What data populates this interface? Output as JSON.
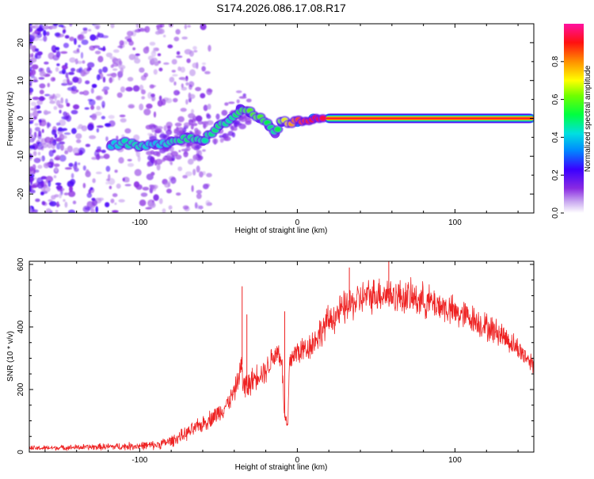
{
  "title": "S174.2026.086.17.08.R17",
  "colors": {
    "snr_line": "#ee2222",
    "axis": "#000000",
    "background": "#ffffff"
  },
  "chart_data": [
    {
      "type": "heatmap",
      "name": "spectrogram",
      "xlabel": "Height of straight line (km)",
      "ylabel": "Frequency (Hz)",
      "xlim": [
        -170,
        150
      ],
      "ylim": [
        -25,
        25
      ],
      "xticks": [
        -100,
        0,
        100
      ],
      "xtick_labels": [
        "-100",
        "0",
        "100"
      ],
      "yticks": [
        -20,
        -10,
        0,
        10,
        20
      ],
      "ytick_labels": [
        "-20",
        "-10",
        "0",
        "10",
        "20"
      ],
      "ridge": {
        "x": [
          -118,
          -110,
          -100,
          -90,
          -80,
          -70,
          -60,
          -50,
          -42,
          -36,
          -30,
          -24,
          -18,
          -14,
          -10,
          0,
          10,
          20,
          40,
          60,
          80,
          100,
          120,
          140,
          148
        ],
        "y": [
          -7,
          -6.5,
          -7.5,
          -7,
          -6,
          -5,
          -6,
          -2,
          0,
          2.5,
          1.5,
          0,
          -2,
          -4,
          -1,
          -1,
          0,
          0,
          0,
          0,
          0,
          0,
          0,
          0,
          0
        ],
        "amplitude": [
          0.4,
          0.45,
          0.45,
          0.4,
          0.45,
          0.5,
          0.45,
          0.5,
          0.45,
          0.55,
          0.6,
          0.6,
          0.5,
          0.45,
          0.65,
          0.85,
          0.9,
          0.95,
          0.95,
          0.95,
          0.95,
          0.95,
          0.95,
          0.95,
          0.95
        ]
      },
      "colorbar": {
        "label": "Normalized spectral amplitude",
        "range": [
          0,
          1
        ],
        "ticks": [
          0.0,
          0.2,
          0.4,
          0.6,
          0.8
        ],
        "tick_labels": [
          "0.0",
          "0.2",
          "0.4",
          "0.6",
          "0.8"
        ]
      }
    },
    {
      "type": "line",
      "name": "snr",
      "xlabel": "Height of straight line (km)",
      "ylabel": "SNR (10 * v/v)",
      "xlim": [
        -170,
        150
      ],
      "ylim": [
        0,
        610
      ],
      "xticks": [
        -100,
        0,
        100
      ],
      "xtick_labels": [
        "-100",
        "0",
        "100"
      ],
      "yticks": [
        0,
        200,
        400,
        600
      ],
      "ytick_labels": [
        "0",
        "200",
        "400",
        "600"
      ],
      "series": [
        {
          "name": "SNR",
          "x": [
            -170,
            -150,
            -130,
            -110,
            -90,
            -80,
            -70,
            -60,
            -50,
            -45,
            -40,
            -36,
            -35,
            -34,
            -30,
            -25,
            -20,
            -15,
            -12,
            -10,
            -8,
            -6,
            -5,
            -3,
            0,
            5,
            10,
            15,
            20,
            30,
            40,
            50,
            55,
            60,
            70,
            80,
            90,
            100,
            110,
            120,
            130,
            140,
            150
          ],
          "y": [
            12,
            14,
            16,
            18,
            22,
            35,
            60,
            90,
            125,
            150,
            190,
            260,
            280,
            200,
            220,
            250,
            260,
            310,
            320,
            300,
            110,
            80,
            280,
            310,
            320,
            330,
            350,
            385,
            420,
            460,
            490,
            505,
            510,
            500,
            495,
            485,
            470,
            445,
            430,
            400,
            375,
            330,
            280
          ],
          "noise_band": [
            8,
            8,
            10,
            12,
            14,
            18,
            22,
            26,
            30,
            30,
            32,
            35,
            80,
            60,
            40,
            40,
            40,
            45,
            45,
            40,
            30,
            25,
            40,
            40,
            45,
            45,
            45,
            50,
            50,
            55,
            55,
            55,
            60,
            55,
            55,
            55,
            50,
            50,
            45,
            45,
            40,
            35,
            30
          ],
          "spikes": [
            {
              "x": -35,
              "y": 530
            },
            {
              "x": -32,
              "y": 440
            },
            {
              "x": -8,
              "y": 450
            },
            {
              "x": 33,
              "y": 590
            },
            {
              "x": 58,
              "y": 610
            }
          ]
        }
      ]
    }
  ]
}
